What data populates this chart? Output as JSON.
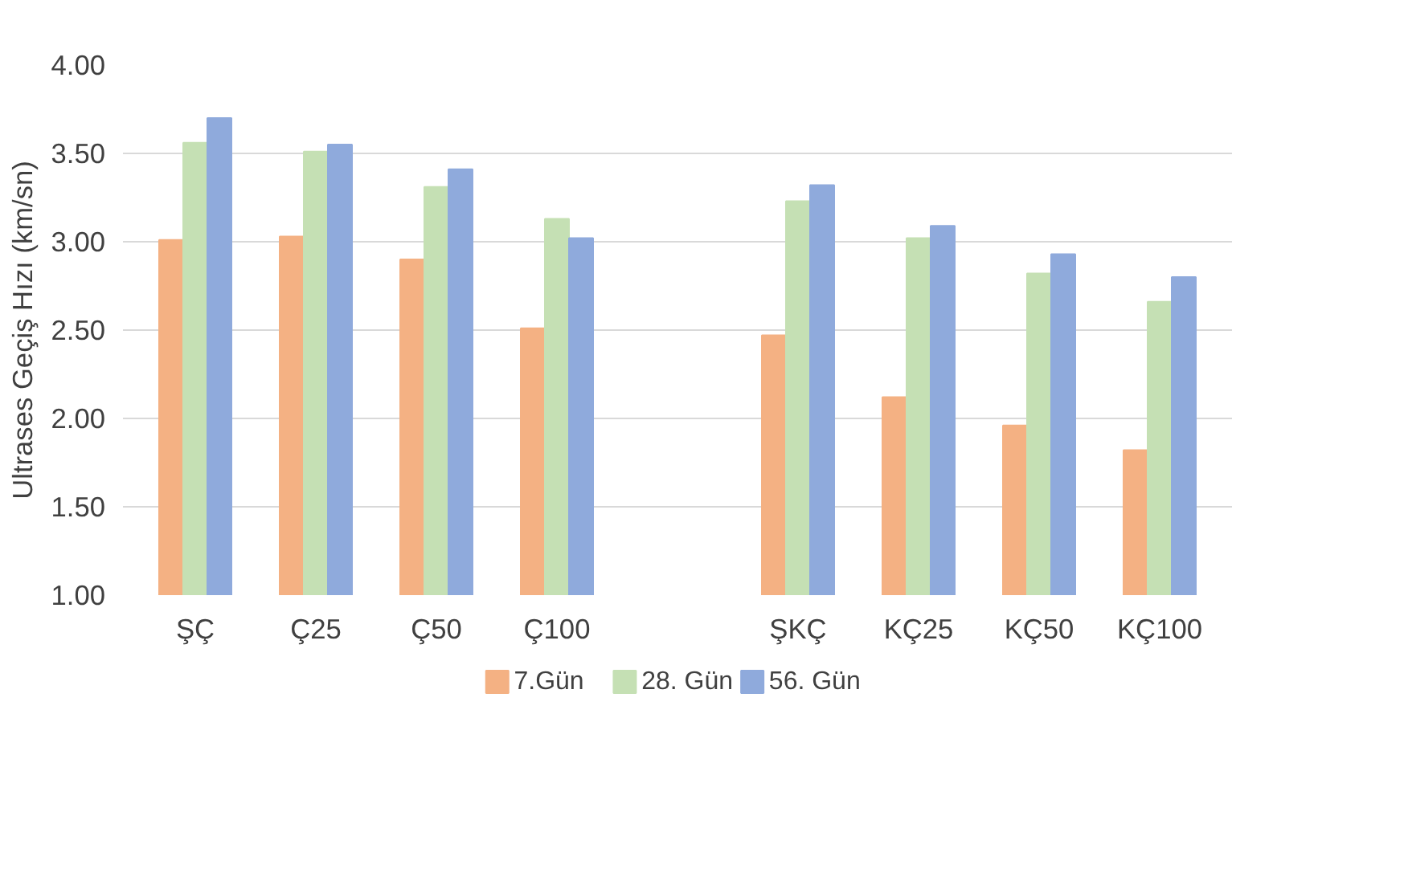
{
  "chart_data": {
    "type": "bar",
    "ylabel": "Ultrases Geçiş Hızı (km/sn)",
    "categories": [
      "ŞÇ",
      "Ç25",
      "Ç50",
      "Ç100",
      null,
      "ŞKÇ",
      "KÇ25",
      "KÇ50",
      "KÇ100"
    ],
    "series": [
      {
        "name": "7.Gün",
        "color": "#f4b183",
        "values": [
          3.01,
          3.03,
          2.9,
          2.51,
          null,
          2.47,
          2.12,
          1.96,
          1.82
        ]
      },
      {
        "name": "28. Gün",
        "color": "#c5e0b4",
        "values": [
          3.56,
          3.51,
          3.31,
          3.13,
          null,
          3.23,
          3.02,
          2.82,
          2.66
        ]
      },
      {
        "name": "56. Gün",
        "color": "#8faadc",
        "values": [
          3.7,
          3.55,
          3.41,
          3.02,
          null,
          3.32,
          3.09,
          2.93,
          2.8
        ]
      }
    ],
    "ylim": [
      1,
      4
    ],
    "yticks": [
      {
        "value": 1,
        "label": "1.00"
      },
      {
        "value": 1.5,
        "label": "1.50"
      },
      {
        "value": 2,
        "label": "2.00"
      },
      {
        "value": 2.5,
        "label": "2.50"
      },
      {
        "value": 3,
        "label": "3.00"
      },
      {
        "value": 3.5,
        "label": "3.50"
      },
      {
        "value": 4,
        "label": "4.00"
      }
    ],
    "grid": "y",
    "legend": "bottom"
  }
}
